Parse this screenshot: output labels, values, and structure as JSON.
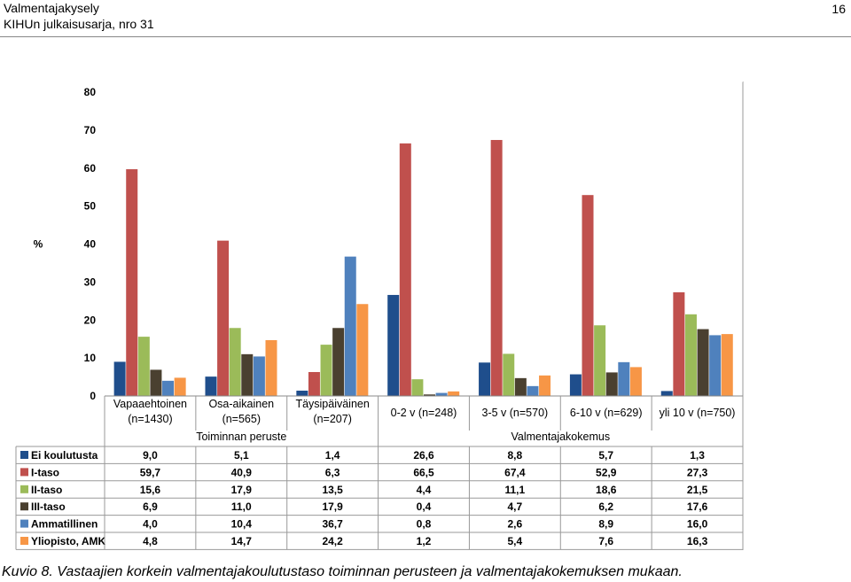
{
  "header": {
    "line1": "Valmentajakysely",
    "line2": "KIHUn julkaisusarja, nro 31",
    "page_number": "16"
  },
  "caption": "Kuvio 8. Vastaajien korkein valmentajakoulutustaso toiminnan perusteen ja valmentajakokemuksen mukaan.",
  "chart_data": {
    "type": "bar",
    "ylabel": "%",
    "ylim": [
      0,
      80
    ],
    "yticks": [
      "0",
      "10",
      "20",
      "30",
      "40",
      "50",
      "60",
      "70",
      "80"
    ],
    "categories": [
      [
        "Vapaaehtoinen",
        "(n=1430)"
      ],
      [
        "Osa-aikainen",
        "(n=565)"
      ],
      [
        "Täysipäiväinen",
        "(n=207)"
      ],
      [
        "0-2 v (n=248)"
      ],
      [
        "3-5 v (n=570)"
      ],
      [
        "6-10 v (n=629)"
      ],
      [
        "yli 10 v (n=750)"
      ]
    ],
    "groups": [
      {
        "label": "Toiminnan peruste",
        "span": [
          0,
          2
        ]
      },
      {
        "label": "Valmentajakokemus",
        "span": [
          3,
          6
        ]
      }
    ],
    "series": [
      {
        "name": "Ei koulutusta",
        "color": "#1f4e8c",
        "values": [
          9.0,
          5.1,
          1.4,
          26.6,
          8.8,
          5.7,
          1.3
        ],
        "labels": [
          "9,0",
          "5,1",
          "1,4",
          "26,6",
          "8,8",
          "5,7",
          "1,3"
        ]
      },
      {
        "name": "I-taso",
        "color": "#c0504d",
        "values": [
          59.7,
          40.9,
          6.3,
          66.5,
          67.4,
          52.9,
          27.3
        ],
        "labels": [
          "59,7",
          "40,9",
          "6,3",
          "66,5",
          "67,4",
          "52,9",
          "27,3"
        ]
      },
      {
        "name": "II-taso",
        "color": "#9bbb59",
        "values": [
          15.6,
          17.9,
          13.5,
          4.4,
          11.1,
          18.6,
          21.5
        ],
        "labels": [
          "15,6",
          "17,9",
          "13,5",
          "4,4",
          "11,1",
          "18,6",
          "21,5"
        ]
      },
      {
        "name": "III-taso",
        "color": "#4a4030",
        "values": [
          6.9,
          11.0,
          17.9,
          0.4,
          4.7,
          6.2,
          17.6
        ],
        "labels": [
          "6,9",
          "11,0",
          "17,9",
          "0,4",
          "4,7",
          "6,2",
          "17,6"
        ]
      },
      {
        "name": "Ammatillinen",
        "color": "#4f81bd",
        "values": [
          4.0,
          10.4,
          36.7,
          0.8,
          2.6,
          8.9,
          16.0
        ],
        "labels": [
          "4,0",
          "10,4",
          "36,7",
          "0,8",
          "2,6",
          "8,9",
          "16,0"
        ]
      },
      {
        "name": "Yliopisto, AMK",
        "color": "#f79646",
        "values": [
          4.8,
          14.7,
          24.2,
          1.2,
          5.4,
          7.6,
          16.3
        ],
        "labels": [
          "4,8",
          "14,7",
          "24,2",
          "1,2",
          "5,4",
          "7,6",
          "16,3"
        ]
      }
    ],
    "grid": false,
    "legend": "data-table"
  }
}
